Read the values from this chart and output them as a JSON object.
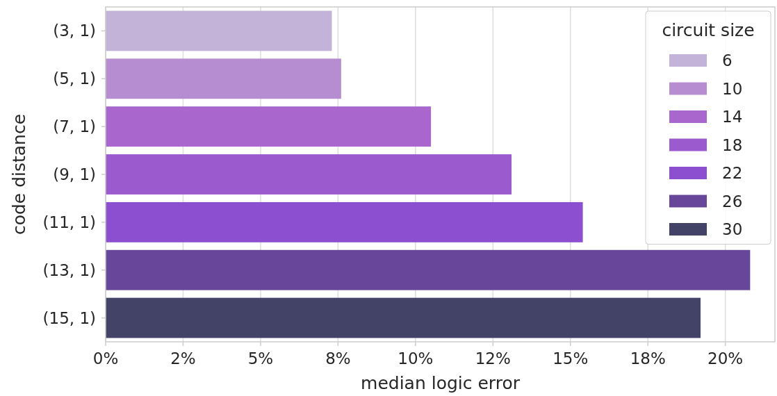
{
  "chart_data": {
    "type": "bar",
    "orientation": "horizontal",
    "xlabel": "median logic error",
    "ylabel": "code distance",
    "legend_title": "circuit size",
    "legend": "top right",
    "grid": "x",
    "categories": [
      "(3, 1)",
      "(5, 1)",
      "(7, 1)",
      "(9, 1)",
      "(11, 1)",
      "(13, 1)",
      "(15, 1)"
    ],
    "xlim": [
      0,
      21.6
    ],
    "xticks": [
      {
        "value": 0,
        "label": "0%"
      },
      {
        "value": 2.5,
        "label": "2%"
      },
      {
        "value": 5,
        "label": "5%"
      },
      {
        "value": 7.5,
        "label": "8%"
      },
      {
        "value": 10,
        "label": "10%"
      },
      {
        "value": 12.5,
        "label": "12%"
      },
      {
        "value": 15,
        "label": "15%"
      },
      {
        "value": 17.5,
        "label": "18%"
      },
      {
        "value": 20,
        "label": "20%"
      }
    ],
    "series": [
      {
        "name": "6",
        "color": "#c3b3d8",
        "values": [
          7.3,
          null,
          null,
          null,
          null,
          null,
          null
        ]
      },
      {
        "name": "10",
        "color": "#b68dd0",
        "values": [
          null,
          7.6,
          null,
          null,
          null,
          null,
          null
        ]
      },
      {
        "name": "14",
        "color": "#a966cd",
        "values": [
          null,
          null,
          10.5,
          null,
          null,
          null,
          null
        ]
      },
      {
        "name": "18",
        "color": "#9b5bcf",
        "values": [
          null,
          null,
          null,
          13.1,
          null,
          null,
          null
        ]
      },
      {
        "name": "22",
        "color": "#8b4fcf",
        "values": [
          null,
          null,
          null,
          null,
          15.4,
          null,
          null
        ]
      },
      {
        "name": "26",
        "color": "#68479a",
        "values": [
          null,
          null,
          null,
          null,
          null,
          20.8,
          null
        ]
      },
      {
        "name": "30",
        "color": "#434368",
        "values": [
          null,
          null,
          null,
          null,
          null,
          null,
          19.2
        ]
      }
    ]
  }
}
